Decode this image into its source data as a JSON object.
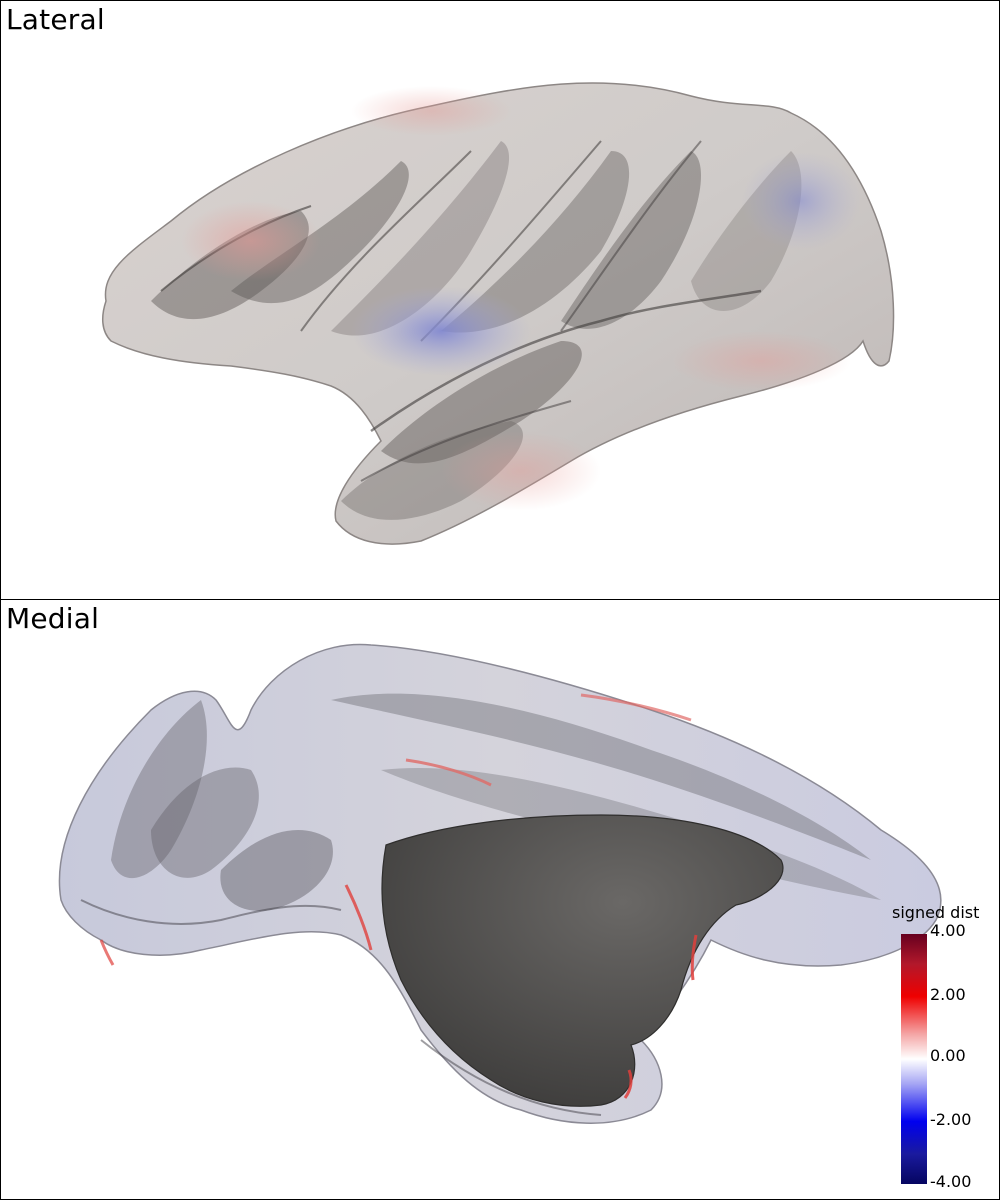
{
  "panels": {
    "top_title": "Lateral",
    "bottom_title": "Medial"
  },
  "colorbar": {
    "title": "signed dist",
    "ticks": [
      "4.00",
      "2.00",
      "0.00",
      "-2.00",
      "-4.00"
    ],
    "range": [
      -4.0,
      4.0
    ],
    "colors": {
      "max": "#67001f",
      "high": "#ef0000",
      "mid": "#ffffff",
      "low": "#0000ef",
      "min": "#050560"
    }
  },
  "surface_colors": {
    "base": "#cfcbc8",
    "shadow": "#55504e",
    "cut": "#5a5856",
    "positive_tint": "#e9a4a0",
    "negative_tint": "#8f95d6"
  }
}
